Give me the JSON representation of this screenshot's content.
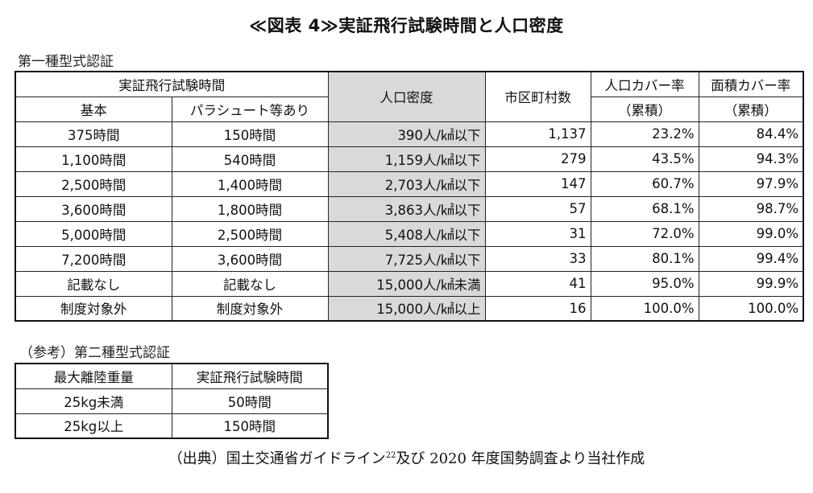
{
  "title": "≪図表 4≫実証飛行試験時間と人口密度",
  "type1_label": "第一種型式認証",
  "main_table": {
    "headers": {
      "flight_time": "実証飛行試験時間",
      "basic": "基本",
      "parachute": "パラシュート等あり",
      "density": "人口密度",
      "municipalities": "市区町村数",
      "pop_cover_1": "人口カバー率",
      "pop_cover_2": "（累積）",
      "area_cover_1": "面積カバー率",
      "area_cover_2": "（累積）"
    },
    "rows": [
      {
        "basic": "375時間",
        "parachute": "150時間",
        "density": "390人/㎢以下",
        "count": "1,137",
        "pop": "23.2%",
        "area": "84.4%"
      },
      {
        "basic": "1,100時間",
        "parachute": "540時間",
        "density": "1,159人/㎢以下",
        "count": "279",
        "pop": "43.5%",
        "area": "94.3%"
      },
      {
        "basic": "2,500時間",
        "parachute": "1,400時間",
        "density": "2,703人/㎢以下",
        "count": "147",
        "pop": "60.7%",
        "area": "97.9%"
      },
      {
        "basic": "3,600時間",
        "parachute": "1,800時間",
        "density": "3,863人/㎢以下",
        "count": "57",
        "pop": "68.1%",
        "area": "98.7%"
      },
      {
        "basic": "5,000時間",
        "parachute": "2,500時間",
        "density": "5,408人/㎢以下",
        "count": "31",
        "pop": "72.0%",
        "area": "99.0%"
      },
      {
        "basic": "7,200時間",
        "parachute": "3,600時間",
        "density": "7,725人/㎢以下",
        "count": "33",
        "pop": "80.1%",
        "area": "99.4%"
      },
      {
        "basic": "記載なし",
        "parachute": "記載なし",
        "density": "15,000人/㎢未満",
        "count": "41",
        "pop": "95.0%",
        "area": "99.9%"
      },
      {
        "basic": "制度対象外",
        "parachute": "制度対象外",
        "density": "15,000人/㎢以上",
        "count": "16",
        "pop": "100.0%",
        "area": "100.0%"
      }
    ]
  },
  "type2_label": "（参考）第二種型式認証",
  "sub_table": {
    "headers": {
      "weight": "最大離陸重量",
      "flight_time": "実証飛行試験時間"
    },
    "rows": [
      {
        "weight": "25kg未満",
        "time": "50時間"
      },
      {
        "weight": "25kg以上",
        "time": "150時間"
      }
    ]
  },
  "source": {
    "prefix": "（出典）国土交通省ガイドライン",
    "footnote": "22",
    "suffix": "及び 2020 年度国勢調査より当社作成"
  }
}
